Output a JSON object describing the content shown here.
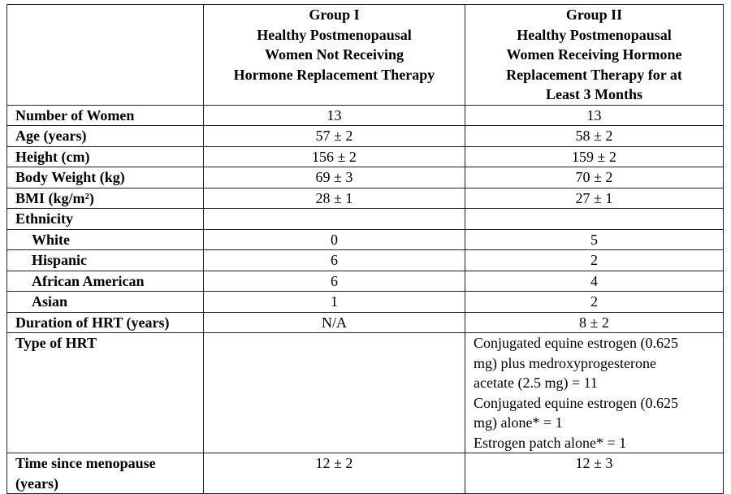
{
  "table": {
    "header": {
      "group_1": [
        "Group I",
        "Healthy Postmenopausal",
        "Women Not Receiving",
        "Hormone Replacement Therapy"
      ],
      "group_2": [
        "Group II",
        "Healthy Postmenopausal",
        "Women Receiving Hormone",
        "Replacement Therapy for at",
        "Least 3 Months"
      ]
    },
    "rows": [
      {
        "label": "Number of Women",
        "group_1": "13",
        "group_2": "13"
      },
      {
        "label": "Age (years)",
        "group_1": "57 ± 2",
        "group_2": "58 ± 2"
      },
      {
        "label": "Height (cm)",
        "group_1": "156 ± 2",
        "group_2": "159 ± 2"
      },
      {
        "label": "Body Weight (kg)",
        "group_1": "69 ± 3",
        "group_2": "70 ± 2"
      },
      {
        "label": "BMI (kg/m²)",
        "group_1": "28 ± 1",
        "group_2": "27 ± 1"
      },
      {
        "label": "Ethnicity"
      },
      {
        "label": "White",
        "indent": true,
        "group_1": "0",
        "group_2": "5"
      },
      {
        "label": "Hispanic",
        "indent": true,
        "group_1": "6",
        "group_2": "2"
      },
      {
        "label": "African American",
        "indent": true,
        "group_1": "6",
        "group_2": "4"
      },
      {
        "label": "Asian",
        "indent": true,
        "group_1": "1",
        "group_2": "2"
      },
      {
        "label": "Duration of HRT (years)",
        "group_1": "N/A",
        "group_2": "8 ± 2"
      },
      {
        "label": "Type of HRT",
        "group_2": [
          "Conjugated equine estrogen (0.625",
          "mg) plus medroxyprogesterone",
          "acetate (2.5 mg) = 11",
          "Conjugated equine estrogen (0.625",
          "mg) alone* = 1",
          "Estrogen patch alone* = 1"
        ]
      },
      {
        "label": "Time since menopause (years)",
        "group_1": "12 ± 2",
        "group_2": "12 ± 3"
      }
    ]
  }
}
